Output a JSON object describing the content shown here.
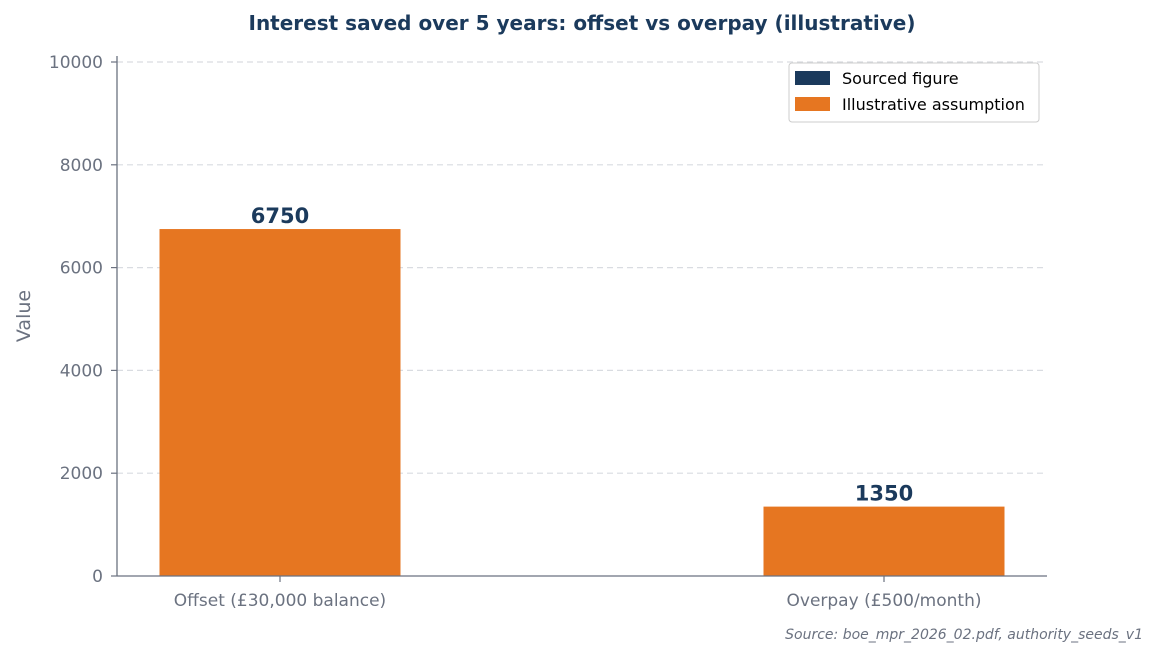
{
  "chart_data": {
    "type": "bar",
    "title": "Interest saved over 5 years: offset vs overpay (illustrative)",
    "xlabel": "",
    "ylabel": "Value",
    "ylim": [
      0,
      10000
    ],
    "yticks": [
      0,
      2000,
      4000,
      6000,
      8000,
      10000
    ],
    "grid": true,
    "legend_position": "top-right",
    "categories": [
      "Offset (£30,000 balance)",
      "Overpay (£500/month)"
    ],
    "values": [
      6750,
      1350
    ],
    "data_labels": [
      "6750",
      "1350"
    ],
    "bar_kind": [
      "Illustrative assumption",
      "Illustrative assumption"
    ],
    "legend": [
      {
        "label": "Sourced figure",
        "color": "#1b3a5c"
      },
      {
        "label": "Illustrative assumption",
        "color": "#e67621"
      }
    ],
    "source_note": "Source: boe_mpr_2026_02.pdf, authority_seeds_v1"
  },
  "colors": {
    "sourced": "#1b3a5c",
    "illustrative": "#e67621",
    "title": "#1b3a5c",
    "axis": "#6b7280",
    "grid": "#d9dce1",
    "data_label": "#1b3a5c"
  }
}
